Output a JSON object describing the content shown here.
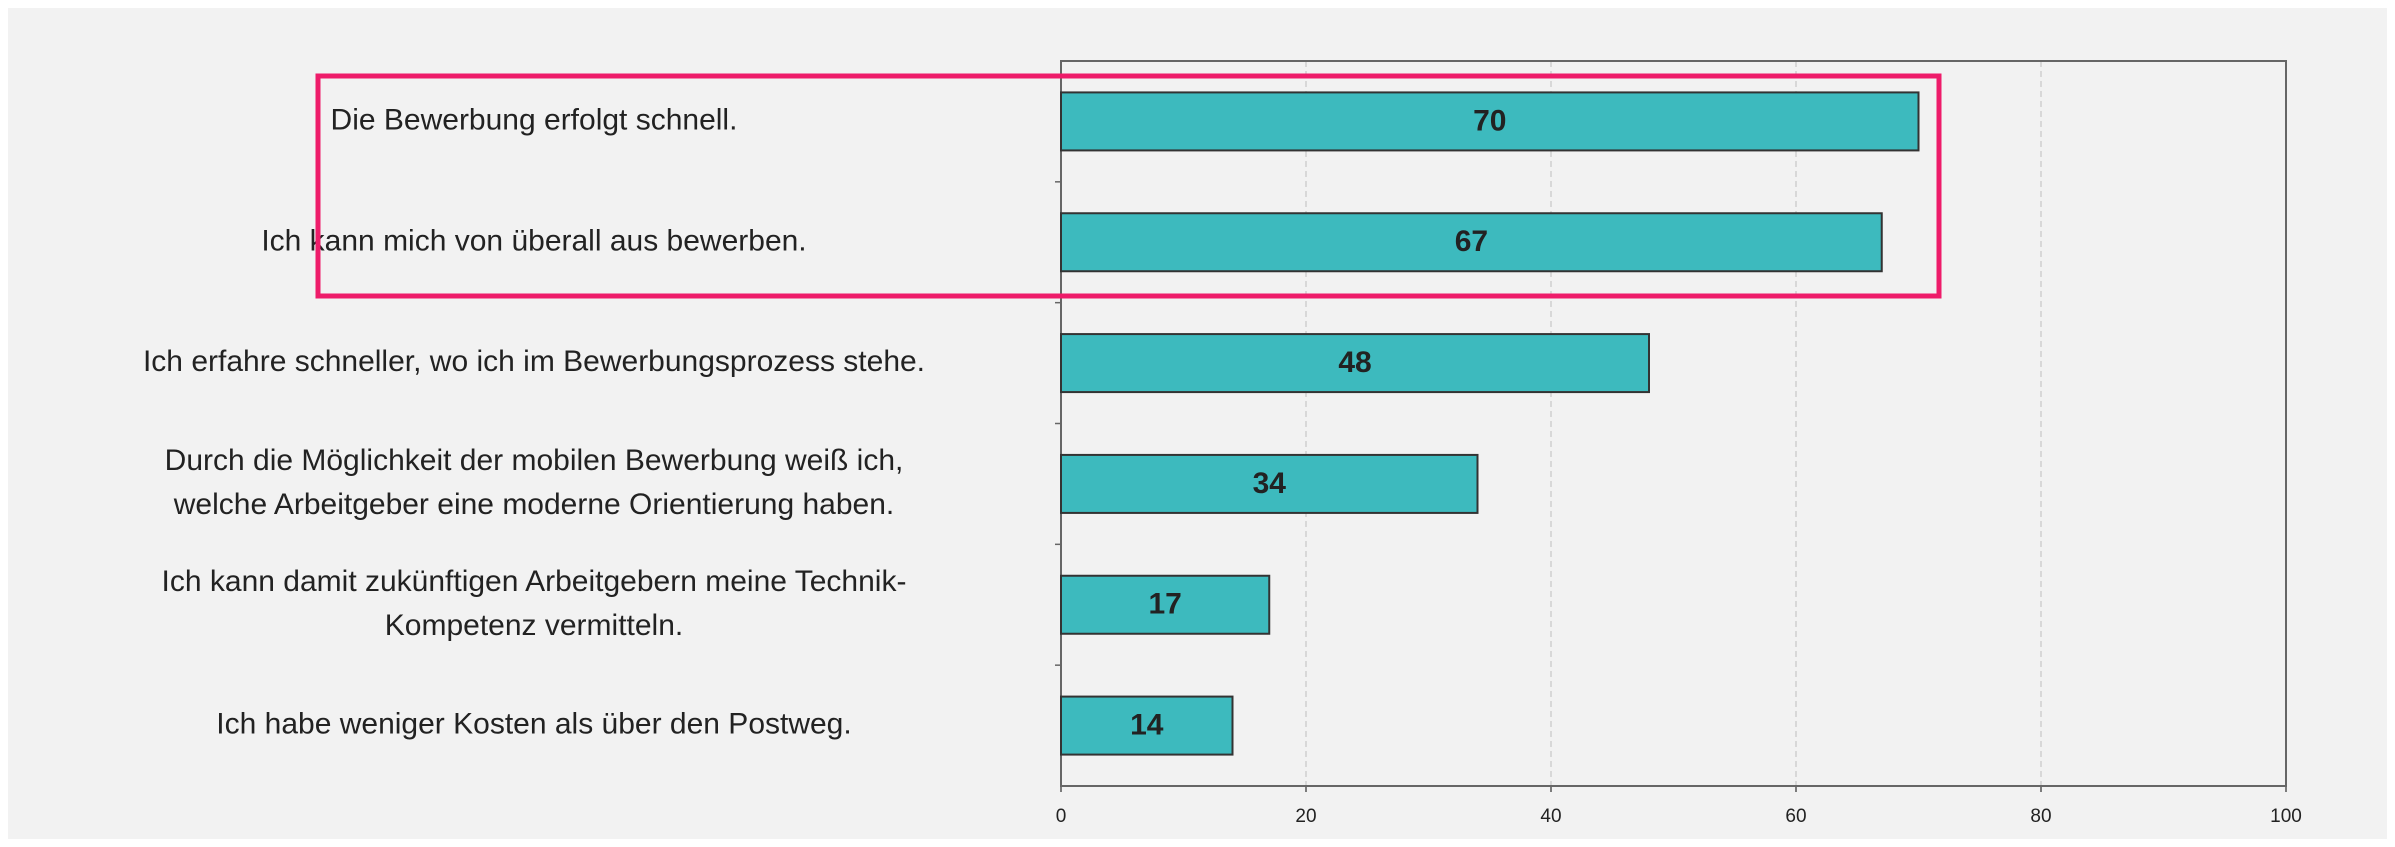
{
  "chart_data": {
    "type": "bar",
    "orientation": "horizontal",
    "categories": [
      "Die Bewerbung erfolgt schnell.",
      "Ich kann mich von überall aus bewerben.",
      "Ich erfahre schneller, wo ich im Bewerbungsprozess stehe.",
      "Durch die Möglichkeit der mobilen Bewerbung weiß ich,\nwelche Arbeitgeber eine moderne Orientierung haben.",
      "Ich kann damit zukünftigen Arbeitgebern meine Technik-\nKompetenz vermitteln.",
      "Ich habe weniger Kosten als über den Postweg."
    ],
    "values": [
      70,
      67,
      48,
      34,
      17,
      14
    ],
    "color": "#3dbabe",
    "xlim": [
      0,
      100
    ],
    "xticks": [
      0,
      20,
      40,
      60,
      80,
      100
    ],
    "grid": true
  }
}
